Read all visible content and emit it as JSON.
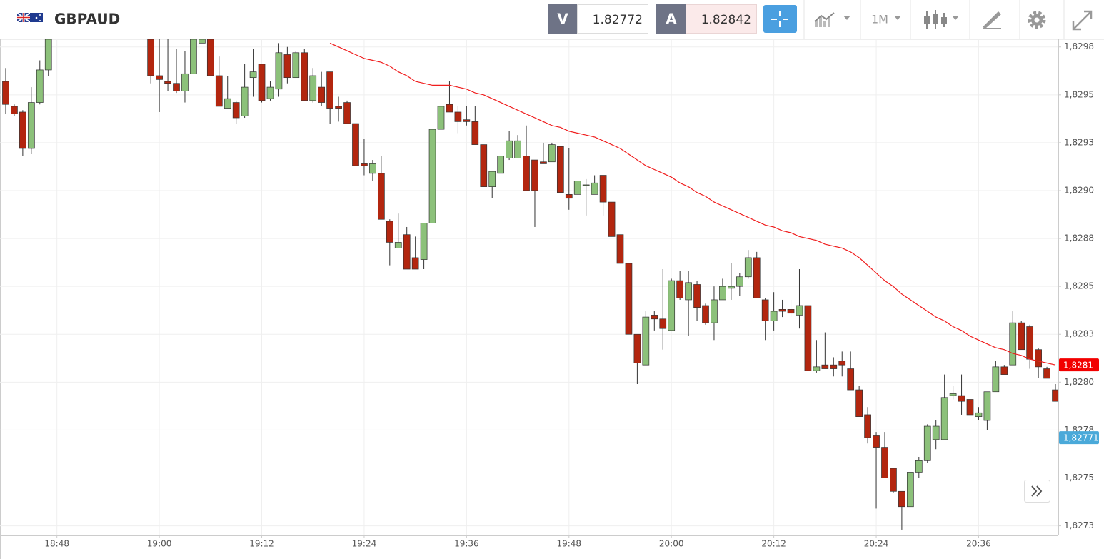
{
  "header": {
    "symbol": "GBPAUD",
    "sell_label": "V",
    "sell_price": "1.82772",
    "buy_label": "A",
    "buy_price": "1.82842",
    "timeframe": "1M"
  },
  "chart_data": {
    "type": "candlestick",
    "categories": [
      null,
      null,
      null,
      null,
      null,
      null,
      "18:48",
      null,
      null,
      null,
      null,
      null,
      null,
      null,
      null,
      null,
      null,
      null,
      "19:00",
      null,
      null,
      null,
      null,
      null,
      null,
      null,
      null,
      null,
      null,
      null,
      "19:12",
      null,
      null,
      null,
      null,
      null,
      null,
      null,
      null,
      null,
      null,
      null,
      "19:24",
      null,
      null,
      null,
      null,
      null,
      null,
      null,
      null,
      null,
      null,
      null,
      "19:36",
      null,
      null,
      null,
      null,
      null,
      null,
      null,
      null,
      null,
      null,
      null,
      "19:48",
      null,
      null,
      null,
      null,
      null,
      null,
      null,
      null,
      null,
      null,
      null,
      "20:00",
      null,
      null,
      null,
      null,
      null,
      null,
      null,
      null,
      null,
      null,
      null,
      "20:12",
      null,
      null,
      null,
      null,
      null,
      null,
      null,
      null,
      null,
      null,
      null,
      "20:24",
      null,
      null,
      null,
      null,
      null,
      null,
      null,
      null,
      null,
      null,
      null,
      "20:36",
      null,
      null,
      null,
      null,
      null,
      null,
      null,
      null,
      null
    ],
    "candles": [
      [
        1.82957,
        1.82964,
        1.8294,
        1.82945
      ],
      [
        1.82944,
        1.82945,
        1.82939,
        1.8294
      ],
      [
        1.82941,
        1.82942,
        1.82918,
        1.82922
      ],
      [
        1.82922,
        1.82954,
        1.82919,
        1.82946
      ],
      [
        1.82946,
        1.82968,
        1.82945,
        1.82963
      ],
      [
        1.82963,
        1.82979,
        1.8296,
        1.82979
      ],
      null,
      null,
      null,
      null,
      null,
      null,
      null,
      null,
      null,
      null,
      null,
      [
        1.82979,
        1.82979,
        1.82956,
        1.8296
      ],
      [
        1.8296,
        1.82979,
        1.82941,
        1.82958
      ],
      [
        1.82957,
        1.82979,
        1.82952,
        1.82956
      ],
      [
        1.82956,
        1.82974,
        1.82951,
        1.82952
      ],
      [
        1.82952,
        1.82973,
        1.82946,
        1.82961
      ],
      [
        1.82961,
        1.82979,
        1.82961,
        1.82979
      ],
      [
        1.82977,
        1.82979,
        1.82977,
        1.82979
      ],
      [
        1.82979,
        1.82979,
        1.8296,
        1.8296
      ],
      [
        1.8296,
        1.8297,
        1.82944,
        1.82944
      ],
      [
        1.82943,
        1.8296,
        1.82943,
        1.82948
      ],
      [
        1.82946,
        1.82947,
        1.82935,
        1.82938
      ],
      [
        1.82939,
        1.82966,
        1.82938,
        1.82954
      ],
      [
        1.82959,
        1.82974,
        1.82949,
        1.82962
      ],
      [
        1.82966,
        1.82966,
        1.82946,
        1.82947
      ],
      [
        1.82948,
        1.82957,
        1.82947,
        1.82954
      ],
      [
        1.82953,
        1.82977,
        1.82949,
        1.82972
      ],
      [
        1.82971,
        1.82975,
        1.82956,
        1.82959
      ],
      [
        1.82959,
        1.82973,
        1.82959,
        1.82972
      ],
      [
        1.82972,
        1.82974,
        1.82947,
        1.82947
      ],
      [
        1.82947,
        1.82964,
        1.82946,
        1.8296
      ],
      [
        1.82954,
        1.82962,
        1.82944,
        1.82946
      ],
      [
        1.82962,
        1.82962,
        1.82935,
        1.82943
      ],
      [
        1.82944,
        1.82949,
        1.82936,
        1.82943
      ],
      [
        1.82946,
        1.82947,
        1.82935,
        1.82935
      ],
      [
        1.82935,
        1.82935,
        1.82913,
        1.82913
      ],
      [
        1.82914,
        1.82927,
        1.82908,
        1.82913
      ],
      [
        1.82909,
        1.82916,
        1.82905,
        1.82914
      ],
      [
        1.82909,
        1.82918,
        1.82885,
        1.82885
      ],
      [
        1.82884,
        1.82885,
        1.82861,
        1.82873
      ],
      [
        1.8287,
        1.82888,
        1.8287,
        1.82873
      ],
      [
        1.82877,
        1.82881,
        1.82859,
        1.82859
      ],
      [
        1.82865,
        1.82876,
        1.82859,
        1.82859
      ],
      [
        1.82864,
        1.82883,
        1.82859,
        1.82883
      ],
      [
        1.82883,
        1.82932,
        1.82883,
        1.82932
      ],
      [
        1.82932,
        1.82948,
        1.8293,
        1.82944
      ],
      [
        1.82945,
        1.82957,
        1.82941,
        1.82941
      ],
      [
        1.82941,
        1.82944,
        1.8293,
        1.82936
      ],
      [
        1.82937,
        1.82944,
        1.82934,
        1.82936
      ],
      [
        1.82936,
        1.82944,
        1.82924,
        1.82924
      ],
      [
        1.82924,
        1.82924,
        1.82902,
        1.82902
      ],
      [
        1.82902,
        1.8291,
        1.82896,
        1.8291
      ],
      [
        1.82909,
        1.82918,
        1.82909,
        1.82918
      ],
      [
        1.82917,
        1.82931,
        1.82916,
        1.82926
      ],
      [
        1.82917,
        1.82929,
        1.82917,
        1.82926
      ],
      [
        1.82918,
        1.82934,
        1.829,
        1.829
      ],
      [
        1.82916,
        1.82916,
        1.82881,
        1.829
      ],
      [
        1.82915,
        1.82925,
        1.82914,
        1.82914
      ],
      [
        1.82915,
        1.82925,
        1.82915,
        1.82924
      ],
      [
        1.82923,
        1.82923,
        1.82899,
        1.82899
      ],
      [
        1.82898,
        1.82922,
        1.8289,
        1.82896
      ],
      [
        1.82898,
        1.82905,
        1.82898,
        1.82905
      ],
      [
        1.82903,
        1.82906,
        1.82887,
        1.82903
      ],
      [
        1.82898,
        1.82908,
        1.82898,
        1.82904
      ],
      [
        1.82908,
        1.82908,
        1.82887,
        1.82894
      ],
      [
        1.82894,
        1.82894,
        1.82876,
        1.82876
      ],
      [
        1.82877,
        1.82877,
        1.82862,
        1.82862
      ],
      [
        1.82862,
        1.82862,
        1.82825,
        1.82825
      ],
      [
        1.82825,
        1.82825,
        1.82799,
        1.8281
      ],
      [
        1.82809,
        1.82837,
        1.82809,
        1.82834
      ],
      [
        1.82835,
        1.82837,
        1.82827,
        1.82833
      ],
      [
        1.82833,
        1.82859,
        1.82817,
        1.82828
      ],
      [
        1.82827,
        1.82854,
        1.82827,
        1.82853
      ],
      [
        1.82853,
        1.82858,
        1.82843,
        1.82844
      ],
      [
        1.82843,
        1.82858,
        1.82824,
        1.82852
      ],
      [
        1.82851,
        1.82853,
        1.82832,
        1.82839
      ],
      [
        1.8284,
        1.82841,
        1.8283,
        1.82831
      ],
      [
        1.82831,
        1.8285,
        1.82822,
        1.82843
      ],
      [
        1.82843,
        1.82854,
        1.82843,
        1.8285
      ],
      [
        1.82849,
        1.82862,
        1.82843,
        1.8285
      ],
      [
        1.8285,
        1.82857,
        1.82845,
        1.82855
      ],
      [
        1.82855,
        1.82869,
        1.82854,
        1.82865
      ],
      [
        1.82865,
        1.82868,
        1.82844,
        1.82844
      ],
      [
        1.82843,
        1.82844,
        1.82822,
        1.82832
      ],
      [
        1.82832,
        1.82847,
        1.82827,
        1.82837
      ],
      [
        1.82838,
        1.82843,
        1.82834,
        1.82837
      ],
      [
        1.82838,
        1.82843,
        1.82834,
        1.82836
      ],
      [
        1.82835,
        1.82859,
        1.82828,
        1.8284
      ],
      [
        1.8284,
        1.8284,
        1.82806,
        1.82806
      ],
      [
        1.82806,
        1.82822,
        1.82805,
        1.82808
      ],
      [
        1.82809,
        1.82826,
        1.82807,
        1.82807
      ],
      [
        1.82809,
        1.82813,
        1.82803,
        1.82807
      ],
      [
        1.82811,
        1.82816,
        1.82803,
        1.82809
      ],
      [
        1.82807,
        1.82816,
        1.82796,
        1.82796
      ],
      [
        1.82796,
        1.82798,
        1.82782,
        1.82782
      ],
      [
        1.82783,
        1.82787,
        1.82768,
        1.82771
      ],
      [
        1.82772,
        1.82774,
        1.82734,
        1.82766
      ],
      [
        1.82766,
        1.82774,
        1.8275,
        1.8275
      ],
      [
        1.82755,
        1.82755,
        1.82742,
        1.82743
      ],
      [
        1.82743,
        1.82743,
        1.82723,
        1.82735
      ],
      [
        1.82735,
        1.82753,
        1.82735,
        1.82753
      ],
      [
        1.82753,
        1.82761,
        1.8275,
        1.82759
      ],
      [
        1.82759,
        1.82778,
        1.82758,
        1.82777
      ],
      [
        1.8277,
        1.8278,
        1.82765,
        1.82777
      ],
      [
        1.8277,
        1.82804,
        1.8277,
        1.82792
      ],
      [
        1.82793,
        1.82798,
        1.82791,
        1.82794
      ],
      [
        1.82793,
        1.82804,
        1.82783,
        1.8279
      ],
      [
        1.82791,
        1.82794,
        1.82769,
        1.82783
      ],
      [
        1.82782,
        1.82787,
        1.8278,
        1.82784
      ],
      [
        1.8278,
        1.82795,
        1.82775,
        1.82795
      ],
      [
        1.82795,
        1.82811,
        1.82795,
        1.82808
      ],
      [
        1.82808,
        1.82809,
        1.82804,
        1.82804
      ],
      [
        1.82809,
        1.82837,
        1.82809,
        1.82831
      ],
      [
        1.82831,
        1.82832,
        1.82817,
        1.82817
      ],
      [
        1.82829,
        1.8283,
        1.82807,
        1.82812
      ],
      [
        1.82817,
        1.82818,
        1.82802,
        1.82808
      ],
      [
        1.82807,
        1.82808,
        1.82802,
        1.82802
      ],
      [
        1.82796,
        1.82799,
        1.8279,
        1.8279
      ]
    ],
    "up_color": "#8cc17a",
    "down_color": "#b3260f",
    "moving_average": {
      "color": "#f01d1d",
      "values": [
        null,
        null,
        null,
        null,
        null,
        null,
        null,
        null,
        null,
        null,
        null,
        null,
        null,
        null,
        null,
        null,
        null,
        null,
        null,
        null,
        null,
        null,
        null,
        null,
        null,
        null,
        null,
        null,
        null,
        null,
        null,
        null,
        null,
        null,
        null,
        null,
        null,
        null,
        1.82977,
        1.82975,
        1.82973,
        1.82971,
        1.82969,
        1.82968,
        1.82967,
        1.82965,
        1.82962,
        1.8296,
        1.82957,
        1.82956,
        1.82955,
        1.82955,
        1.82955,
        1.82954,
        1.82953,
        1.82951,
        1.8295,
        1.82948,
        1.82946,
        1.82944,
        1.82942,
        1.8294,
        1.82938,
        1.82936,
        1.82934,
        1.82933,
        1.82931,
        1.8293,
        1.82929,
        1.82928,
        1.82926,
        1.82924,
        1.82922,
        1.82919,
        1.82916,
        1.82913,
        1.82911,
        1.82909,
        1.82907,
        1.82904,
        1.82902,
        1.82899,
        1.82897,
        1.82894,
        1.82892,
        1.8289,
        1.82888,
        1.82886,
        1.82884,
        1.82882,
        1.82881,
        1.82879,
        1.82878,
        1.82876,
        1.82875,
        1.82874,
        1.82872,
        1.82871,
        1.8287,
        1.82868,
        1.82865,
        1.82861,
        1.82857,
        1.82853,
        1.8285,
        1.82846,
        1.82843,
        1.8284,
        1.82837,
        1.82834,
        1.82832,
        1.82829,
        1.82827,
        1.82824,
        1.82822,
        1.8282,
        1.82818,
        1.82817,
        1.82815,
        1.82814,
        1.82812,
        1.82811,
        1.8281,
        1.82809
      ]
    },
    "ylim": [
      1.8272,
      1.82979
    ],
    "yticks": [
      {
        "value": 1.82725,
        "label": "1,8273"
      },
      {
        "value": 1.8275,
        "label": "1,8275"
      },
      {
        "value": 1.82775,
        "label": "1,8278"
      },
      {
        "value": 1.828,
        "label": "1,8280"
      },
      {
        "value": 1.82825,
        "label": "1,8283"
      },
      {
        "value": 1.8285,
        "label": "1,8285"
      },
      {
        "value": 1.82875,
        "label": "1,8288"
      },
      {
        "value": 1.829,
        "label": "1,8290"
      },
      {
        "value": 1.82925,
        "label": "1,8293"
      },
      {
        "value": 1.8295,
        "label": "1,8295"
      },
      {
        "value": 1.82975,
        "label": "1,8298"
      }
    ],
    "grid": true,
    "price_tags": [
      {
        "value": 1.82809,
        "label": "1,8281",
        "color": "#f20000"
      },
      {
        "value": 1.82771,
        "label": "1,82771",
        "color": "#4aa9d9"
      }
    ]
  }
}
